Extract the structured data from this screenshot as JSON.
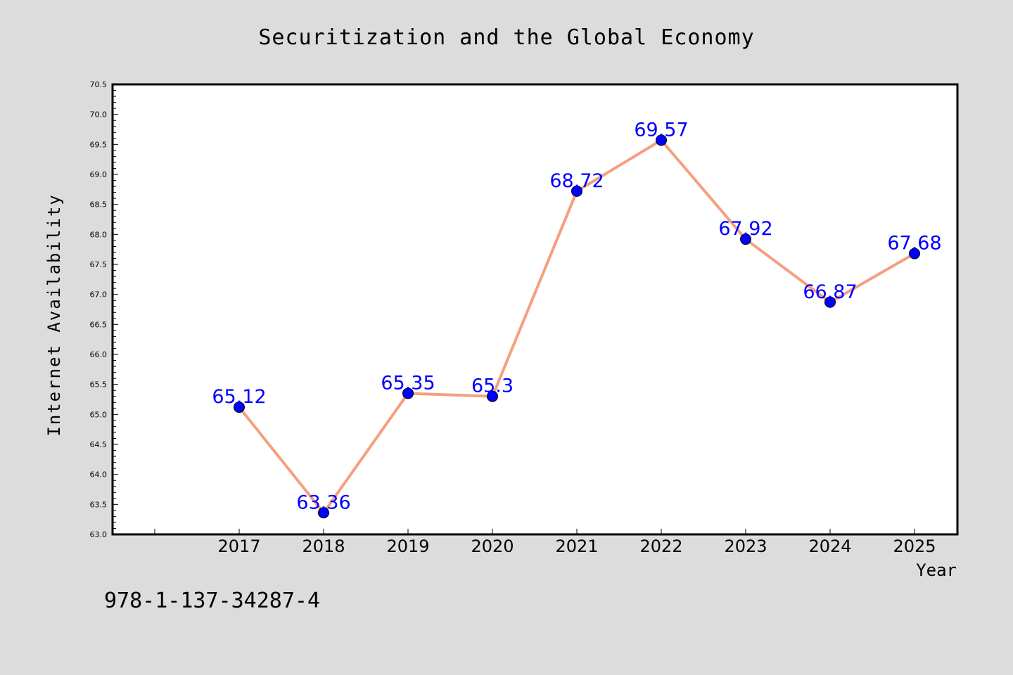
{
  "chart_data": {
    "type": "line",
    "title": "Securitization and the Global Economy",
    "xlabel": "Year",
    "ylabel": "Internet Availability",
    "categories": [
      "2017",
      "2018",
      "2019",
      "2020",
      "2021",
      "2022",
      "2023",
      "2024",
      "2025"
    ],
    "series": [
      {
        "values": [
          65.12,
          63.36,
          65.35,
          65.3,
          68.72,
          69.57,
          67.92,
          66.87,
          67.68
        ],
        "data_labels": [
          "65.12",
          "63.36",
          "65.35",
          "65.3",
          "68.72",
          "69.57",
          "67.92",
          "66.87",
          "67.68"
        ]
      }
    ],
    "ylim": [
      63.0,
      70.5
    ],
    "yticks": [
      "63.0",
      "63.5",
      "64.0",
      "64.5",
      "65.0",
      "65.5",
      "66.0",
      "66.5",
      "67.0",
      "67.5",
      "68.0",
      "68.5",
      "69.0",
      "69.5",
      "70.0",
      "70.5"
    ],
    "grid": false,
    "line_color": "#f4a07f",
    "marker_color": "#0000ff",
    "label_color": "#0000ff"
  },
  "footer": {
    "code": "978-1-137-34287-4"
  }
}
